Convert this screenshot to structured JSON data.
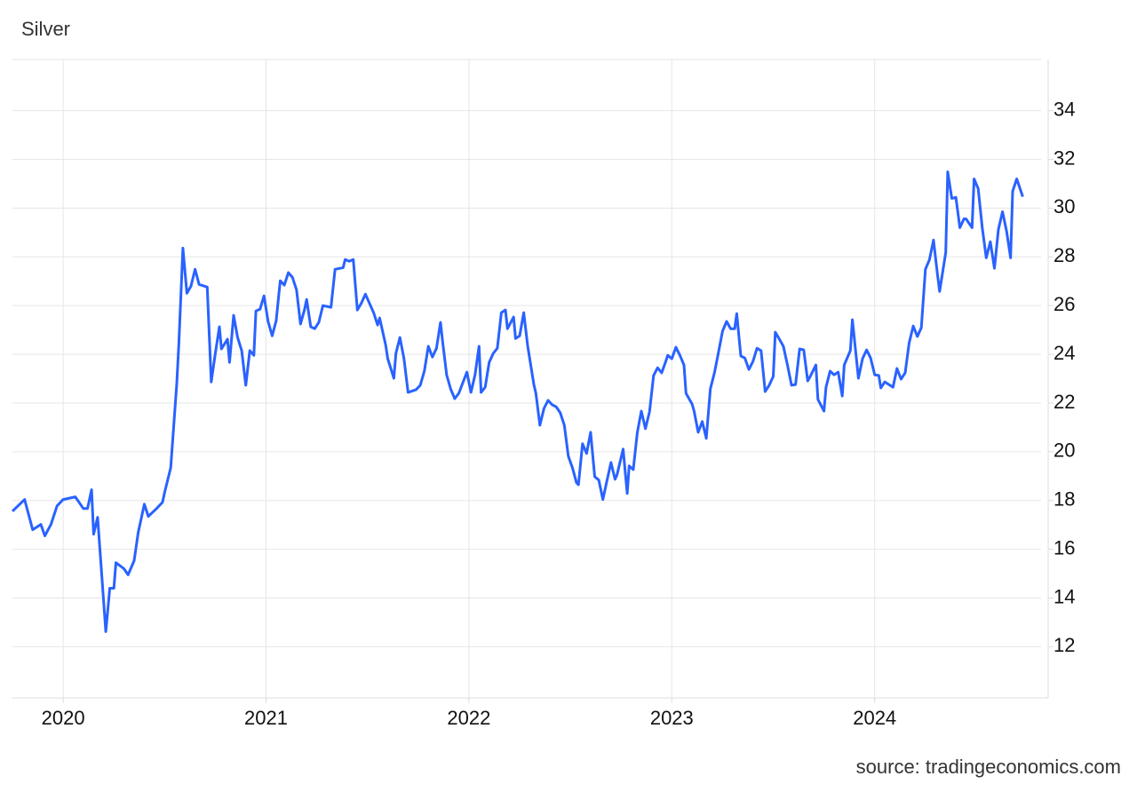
{
  "chart_data": {
    "type": "line",
    "title": "Silver",
    "source": "source: tradingeconomics.com",
    "x": [
      2019.75,
      2019.81,
      2019.85,
      2019.89,
      2019.91,
      2019.94,
      2019.97,
      2020.0,
      2020.06,
      2020.1,
      2020.12,
      2020.14,
      2020.15,
      2020.17,
      2020.21,
      2020.23,
      2020.25,
      2020.26,
      2020.3,
      2020.32,
      2020.35,
      2020.37,
      2020.4,
      2020.42,
      2020.46,
      2020.49,
      2020.5,
      2020.53,
      2020.56,
      2020.57,
      2020.59,
      2020.61,
      2020.63,
      2020.65,
      2020.67,
      2020.71,
      2020.73,
      2020.75,
      2020.77,
      2020.78,
      2020.81,
      2020.82,
      2020.84,
      2020.86,
      2020.88,
      2020.9,
      2020.92,
      2020.94,
      2020.95,
      2020.97,
      2020.99,
      2021.01,
      2021.03,
      2021.05,
      2021.07,
      2021.09,
      2021.11,
      2021.13,
      2021.15,
      2021.17,
      2021.19,
      2021.2,
      2021.22,
      2021.24,
      2021.26,
      2021.28,
      2021.32,
      2021.34,
      2021.38,
      2021.39,
      2021.41,
      2021.43,
      2021.45,
      2021.47,
      2021.49,
      2021.53,
      2021.55,
      2021.56,
      2021.59,
      2021.6,
      2021.63,
      2021.64,
      2021.66,
      2021.68,
      2021.7,
      2021.74,
      2021.76,
      2021.78,
      2021.8,
      2021.82,
      2021.84,
      2021.86,
      2021.87,
      2021.89,
      2021.91,
      2021.93,
      2021.95,
      2021.97,
      2021.99,
      2022.01,
      2022.03,
      2022.05,
      2022.06,
      2022.08,
      2022.1,
      2022.12,
      2022.14,
      2022.16,
      2022.18,
      2022.19,
      2022.22,
      2022.23,
      2022.25,
      2022.27,
      2022.29,
      2022.32,
      2022.33,
      2022.35,
      2022.37,
      2022.39,
      2022.41,
      2022.43,
      2022.45,
      2022.47,
      2022.49,
      2022.51,
      2022.53,
      2022.54,
      2022.56,
      2022.58,
      2022.6,
      2022.62,
      2022.64,
      2022.66,
      2022.68,
      2022.7,
      2022.72,
      2022.73,
      2022.76,
      2022.78,
      2022.79,
      2022.81,
      2022.83,
      2022.85,
      2022.87,
      2022.89,
      2022.91,
      2022.93,
      2022.95,
      2022.97,
      2022.98,
      2023.0,
      2023.02,
      2023.04,
      2023.06,
      2023.07,
      2023.1,
      2023.11,
      2023.13,
      2023.15,
      2023.17,
      2023.19,
      2023.21,
      2023.23,
      2023.25,
      2023.27,
      2023.29,
      2023.31,
      2023.32,
      2023.34,
      2023.36,
      2023.38,
      2023.4,
      2023.42,
      2023.44,
      2023.46,
      2023.48,
      2023.5,
      2023.51,
      2023.53,
      2023.55,
      2023.57,
      2023.59,
      2023.61,
      2023.63,
      2023.65,
      2023.67,
      2023.68,
      2023.71,
      2023.72,
      2023.75,
      2023.76,
      2023.78,
      2023.8,
      2023.82,
      2023.84,
      2023.85,
      2023.88,
      2023.89,
      2023.92,
      2023.94,
      2023.96,
      2023.98,
      2024.0,
      2024.02,
      2024.03,
      2024.05,
      2024.07,
      2024.09,
      2024.11,
      2024.13,
      2024.15,
      2024.17,
      2024.19,
      2024.21,
      2024.23,
      2024.25,
      2024.27,
      2024.29,
      2024.31,
      2024.32,
      2024.35,
      2024.36,
      2024.38,
      2024.4,
      2024.42,
      2024.44,
      2024.45,
      2024.48,
      2024.49,
      2024.51,
      2024.53,
      2024.55,
      2024.57,
      2024.59,
      2024.61,
      2024.63,
      2024.65,
      2024.67,
      2024.68,
      2024.7,
      2024.73
    ],
    "series": [
      {
        "color": "#2962ff",
        "values": [
          17.56,
          18.04,
          16.8,
          17.02,
          16.55,
          17.02,
          17.78,
          18.04,
          18.15,
          17.67,
          17.67,
          18.44,
          16.62,
          17.31,
          12.62,
          14.4,
          14.4,
          15.45,
          15.2,
          14.95,
          15.53,
          16.69,
          17.85,
          17.35,
          17.67,
          17.93,
          18.33,
          19.35,
          22.8,
          24.4,
          28.36,
          26.51,
          26.8,
          27.49,
          26.87,
          26.76,
          22.87,
          24.04,
          25.13,
          24.22,
          24.62,
          23.67,
          25.6,
          24.69,
          24.15,
          22.73,
          24.15,
          23.96,
          25.78,
          25.85,
          26.4,
          25.35,
          24.76,
          25.38,
          27.02,
          26.84,
          27.35,
          27.16,
          26.65,
          25.24,
          25.85,
          26.25,
          25.13,
          25.05,
          25.31,
          26,
          25.93,
          27.49,
          27.56,
          27.89,
          27.82,
          27.89,
          25.82,
          26.11,
          26.47,
          25.71,
          25.2,
          25.49,
          24.36,
          23.82,
          23.02,
          24.04,
          24.69,
          23.82,
          22.44,
          22.55,
          22.73,
          23.31,
          24.33,
          23.89,
          24.25,
          25.31,
          24.55,
          23.16,
          22.58,
          22.18,
          22.4,
          22.84,
          23.27,
          22.44,
          23.16,
          24.33,
          22.44,
          22.65,
          23.67,
          24.04,
          24.25,
          25.71,
          25.82,
          25.05,
          25.53,
          24.65,
          24.76,
          25.71,
          24.33,
          22.76,
          22.4,
          21.09,
          21.78,
          22.11,
          21.93,
          21.85,
          21.6,
          21.09,
          19.82,
          19.35,
          18.73,
          18.65,
          20.33,
          19.93,
          20.8,
          18.98,
          18.84,
          18.04,
          18.8,
          19.56,
          18.87,
          19.05,
          20.11,
          18.29,
          19.42,
          19.27,
          20.8,
          21.67,
          20.95,
          21.64,
          23.13,
          23.45,
          23.24,
          23.71,
          23.96,
          23.82,
          24.29,
          23.96,
          23.56,
          22.4,
          21.96,
          21.67,
          20.8,
          21.24,
          20.55,
          22.58,
          23.24,
          24.07,
          24.95,
          25.35,
          25.05,
          25.05,
          25.67,
          23.93,
          23.85,
          23.38,
          23.71,
          24.25,
          24.15,
          22.47,
          22.73,
          23.09,
          24.91,
          24.62,
          24.33,
          23.56,
          22.73,
          22.76,
          24.22,
          24.18,
          22.91,
          23.05,
          23.56,
          22.15,
          21.67,
          22.65,
          23.31,
          23.16,
          23.27,
          22.29,
          23.56,
          24.15,
          25.42,
          23.02,
          23.82,
          24.18,
          23.85,
          23.16,
          23.13,
          22.62,
          22.87,
          22.76,
          22.65,
          23.42,
          22.98,
          23.24,
          24.47,
          25.16,
          24.73,
          25.09,
          27.49,
          27.89,
          28.69,
          27.24,
          26.58,
          28.18,
          31.49,
          30.4,
          30.44,
          29.2,
          29.56,
          29.56,
          29.2,
          31.2,
          30.8,
          29.2,
          27.96,
          28.62,
          27.53,
          29.13,
          29.85,
          29.05,
          27.96,
          30.69,
          31.2,
          30.47
        ]
      }
    ],
    "xlim": [
      2019.75,
      2024.82
    ],
    "xticks": [
      2020,
      2021,
      2022,
      2023,
      2024
    ],
    "ylim": [
      9.9,
      36.1
    ],
    "yticks": [
      12,
      14,
      16,
      18,
      20,
      22,
      24,
      26,
      28,
      30,
      32,
      34
    ],
    "grid": true
  }
}
